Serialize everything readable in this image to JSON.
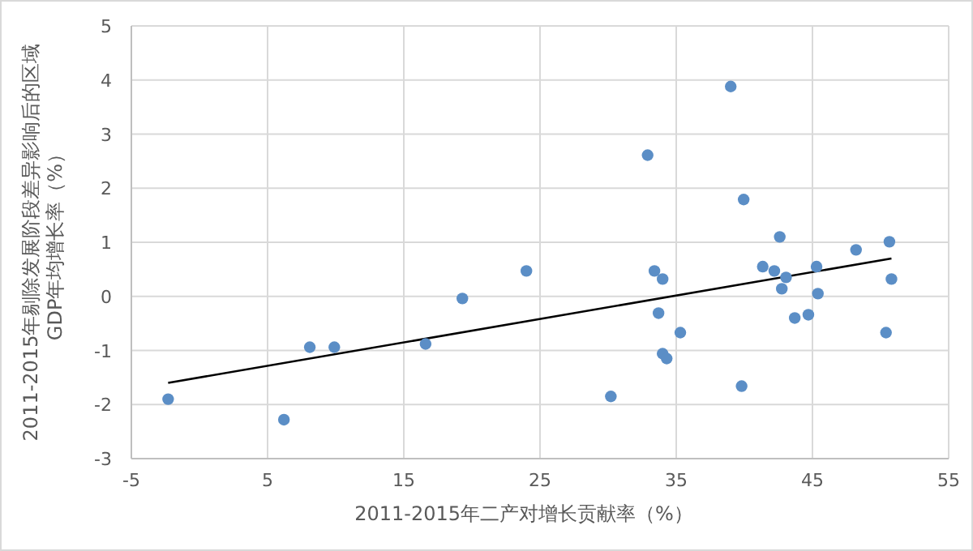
{
  "chart_data": {
    "type": "scatter",
    "xlabel": "2011-2015年二产对增长贡献率（%）",
    "ylabel": "2011-2015年剔除发展阶段差异影响后的区域\nGDP年均增长率（%）",
    "xlim": [
      -5,
      55
    ],
    "xticks": [
      -5,
      5,
      15,
      25,
      35,
      45,
      55
    ],
    "ylim": [
      -3,
      5
    ],
    "yticks": [
      -3,
      -2,
      -1,
      0,
      1,
      2,
      3,
      4,
      5
    ],
    "grid": true,
    "marker": "circle",
    "series": [
      {
        "color": "#5b8ec6",
        "x": [
          -2.3,
          6.2,
          8.1,
          9.9,
          16.6,
          19.3,
          24.0,
          32.9,
          39.0,
          39.95,
          33.4,
          34.0,
          33.7,
          35.3,
          34.0,
          34.3,
          30.2,
          39.8,
          42.6,
          41.35,
          42.2,
          43.06,
          42.75,
          43.7,
          44.7,
          45.3,
          45.4,
          48.2,
          50.65,
          50.8,
          50.4
        ],
        "values": [
          -1.9,
          -2.28,
          -0.94,
          -0.94,
          -0.88,
          -0.04,
          0.47,
          2.61,
          3.88,
          1.79,
          0.47,
          0.32,
          -0.31,
          -0.67,
          -1.06,
          -1.15,
          -1.85,
          -1.66,
          1.1,
          0.55,
          0.47,
          0.35,
          0.14,
          -0.4,
          -0.34,
          0.55,
          0.05,
          0.86,
          1.01,
          0.32,
          -0.67
        ]
      },
      {
        "type": "line",
        "color": "#000000",
        "marker": "none",
        "x": [
          -2.3,
          50.8
        ],
        "values": [
          -1.6,
          0.7
        ]
      }
    ]
  }
}
